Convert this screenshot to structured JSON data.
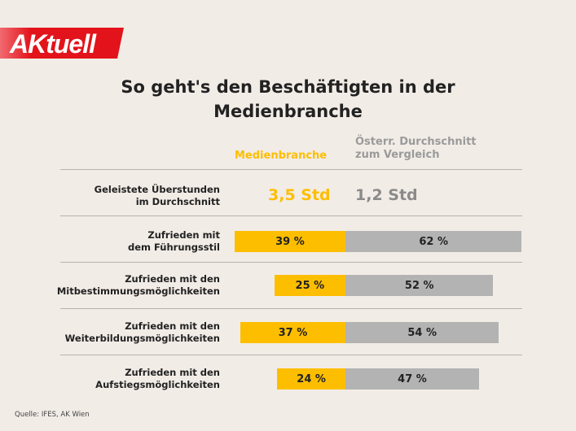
{
  "logo_text": "AKtuell",
  "title_line1": "So geht's den Beschäftigten in der",
  "title_line2": "Medienbranche",
  "colors": {
    "media": "#fdbe00",
    "austria": "#b3b3b3",
    "brand": "#e3131b",
    "background": "#f2ece7"
  },
  "chart_data": {
    "type": "bar",
    "orientation": "horizontal-diverging",
    "series": [
      {
        "name": "Medienbranche",
        "values": [
          39,
          25,
          37,
          24
        ]
      },
      {
        "name": "Österr. Durchschnitt zum Vergleich",
        "values": [
          62,
          52,
          54,
          47
        ]
      }
    ],
    "series_header": {
      "media": "Medienbranche",
      "austria_line1": "Österr. Durchschnitt",
      "austria_line2": "zum Vergleich"
    },
    "categories": [
      [
        "Zufrieden mit",
        "dem Führungsstil"
      ],
      [
        "Zufrieden mit den",
        "Mitbestimmungsmöglichkeiten"
      ],
      [
        "Zufrieden mit den",
        "Weiterbildungsmöglichkeiten"
      ],
      [
        "Zufrieden mit den",
        "Aufstiegsmöglichkeiten"
      ]
    ],
    "media_labels": [
      "39 %",
      "25 %",
      "37 %",
      "24 %"
    ],
    "austria_labels": [
      "62 %",
      "52 %",
      "54 %",
      "47 %"
    ],
    "overtime": {
      "label_line1": "Geleistete Überstunden",
      "label_line2": "im Durchschnitt",
      "media": "3,5 Std",
      "austria": "1,2 Std"
    }
  },
  "source": "Quelle: IFES, AK Wien"
}
